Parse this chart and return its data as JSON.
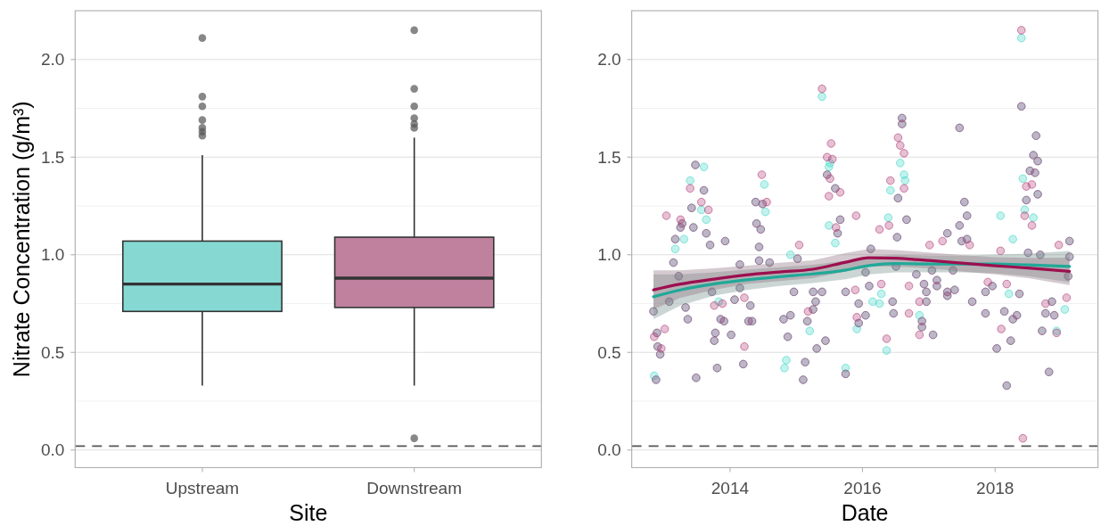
{
  "chart_data": [
    {
      "type": "box",
      "categories": [
        "Upstream",
        "Downstream"
      ],
      "colors": [
        "#86d9d3",
        "#c0819f"
      ],
      "boxes": [
        {
          "low": 0.33,
          "q1": 0.71,
          "median": 0.85,
          "q3": 1.07,
          "high": 1.51,
          "outliers": [
            2.11,
            1.81,
            1.76,
            1.69,
            1.65,
            1.63,
            1.61
          ]
        },
        {
          "low": 0.33,
          "q1": 0.73,
          "median": 0.88,
          "q3": 1.09,
          "high": 1.6,
          "outliers": [
            2.15,
            1.85,
            1.76,
            1.7,
            1.67,
            1.65,
            0.06
          ]
        }
      ],
      "xlabel": "Site",
      "ylabel": "Nitrate Concentration (g/m³)",
      "ylim": [
        -0.09,
        2.25
      ],
      "yticks": [
        {
          "value": 0,
          "label": "0.0"
        },
        {
          "value": 0.25,
          "label": null
        },
        {
          "value": 0.5,
          "label": "0.5"
        },
        {
          "value": 0.75,
          "label": null
        },
        {
          "value": 1,
          "label": "1.0"
        },
        {
          "value": 1.25,
          "label": null
        },
        {
          "value": 1.5,
          "label": "1.5"
        },
        {
          "value": 1.75,
          "label": null
        },
        {
          "value": 2,
          "label": "2.0"
        }
      ],
      "grid": "y",
      "ref_lines": [
        {
          "axis": "y",
          "value": 0.02,
          "color": "#555555",
          "line_style": "dashed"
        }
      ]
    },
    {
      "type": "scatter",
      "xlabel": "Date",
      "xlim": [
        "2012-07-08",
        "2019-07-22"
      ],
      "xticks": [
        "2014",
        "2016",
        "2018"
      ],
      "ylim": [
        -0.09,
        2.25
      ],
      "yticks": [
        {
          "value": 0,
          "label": "0.0"
        },
        {
          "value": 0.25,
          "label": null
        },
        {
          "value": 0.5,
          "label": "0.5"
        },
        {
          "value": 0.75,
          "label": null
        },
        {
          "value": 1,
          "label": "1.0"
        },
        {
          "value": 1.25,
          "label": null
        },
        {
          "value": 1.5,
          "label": "1.5"
        },
        {
          "value": 1.75,
          "label": null
        },
        {
          "value": 2,
          "label": "2.0"
        }
      ],
      "grid": "y",
      "ref_lines": [
        {
          "axis": "y",
          "value": 0.02,
          "color": "#555555",
          "line_style": "dashed"
        }
      ],
      "series": [
        {
          "type": "scatter",
          "color": "#3fd6c6",
          "x": [
            "2012-11-05",
            "2012-11-09",
            "2012-11-19",
            "2012-11-24",
            "2012-11-28",
            "2012-12-12",
            "2013-01-31",
            "2013-02-23",
            "2013-03-05",
            "2013-03-05",
            "2013-03-24",
            "2013-04-03",
            "2013-04-12",
            "2013-04-22",
            "2013-05-01",
            "2013-05-13",
            "2013-05-26",
            "2013-06-03",
            "2013-06-13",
            "2013-06-24",
            "2013-06-28",
            "2013-07-27",
            "2013-08-10",
            "2013-08-10",
            "2013-08-23",
            "2013-08-23",
            "2013-09-13",
            "2013-09-23",
            "2013-10-06",
            "2013-10-12",
            "2013-10-22",
            "2013-10-31",
            "2013-11-10",
            "2013-11-29",
            "2013-12-05",
            "2014-01-07",
            "2014-01-26",
            "2014-02-24",
            "2014-02-24",
            "2014-03-15",
            "2014-04-13",
            "2014-04-23",
            "2014-05-02",
            "2014-05-22",
            "2014-05-27",
            "2014-06-10",
            "2014-06-10",
            "2014-06-19",
            "2014-06-29",
            "2014-07-09",
            "2014-07-15",
            "2014-08-07",
            "2014-10-23",
            "2014-10-28",
            "2014-11-07",
            "2014-11-15",
            "2014-11-30",
            "2014-11-30",
            "2014-12-19",
            "2015-01-08",
            "2015-02-08",
            "2015-02-19",
            "2015-03-03",
            "2015-03-16",
            "2015-04-04",
            "2015-04-04",
            "2015-04-18",
            "2015-04-24",
            "2015-05-23",
            "2015-05-23",
            "2015-06-11",
            "2015-06-20",
            "2015-06-30",
            "2015-06-30",
            "2015-07-06",
            "2015-08-04",
            "2015-08-04",
            "2015-08-17",
            "2015-08-31",
            "2015-09-30",
            "2015-09-30",
            "2015-09-30",
            "2015-12-01",
            "2015-12-11",
            "2015-12-11",
            "2016-01-18",
            "2016-01-18",
            "2016-02-07",
            "2016-02-16",
            "2016-02-26",
            "2016-04-04",
            "2016-04-14",
            "2016-05-13",
            "2016-05-22",
            "2016-06-03",
            "2016-06-15",
            "2016-06-20",
            "2016-07-04",
            "2016-07-10",
            "2016-07-15",
            "2016-07-27",
            "2016-08-06",
            "2016-08-06",
            "2016-08-17",
            "2016-08-23",
            "2016-08-31",
            "2016-10-24",
            "2016-11-10",
            "2016-11-24",
            "2016-11-24",
            "2016-12-05",
            "2016-12-18",
            "2016-12-18",
            "2017-01-18",
            "2017-01-24",
            "2017-02-14",
            "2017-02-14",
            "2017-04-13",
            "2017-04-13",
            "2017-04-13",
            "2017-05-14",
            "2017-05-23",
            "2017-06-19",
            "2017-06-19",
            "2017-07-01",
            "2017-07-16",
            "2017-07-30",
            "2017-07-30",
            "2017-08-28",
            "2017-11-09",
            "2017-11-09",
            "2017-12-17",
            "2018-01-10",
            "2018-01-31",
            "2018-02-21",
            "2018-03-06",
            "2018-03-18",
            "2018-03-28",
            "2018-04-09",
            "2018-04-09",
            "2018-05-01",
            "2018-05-15",
            "2018-05-26",
            "2018-05-26",
            "2018-06-03",
            "2018-06-13",
            "2018-06-22",
            "2018-07-02",
            "2018-07-12",
            "2018-07-31",
            "2018-07-31",
            "2018-08-09",
            "2018-08-15",
            "2018-08-24",
            "2018-08-24",
            "2018-09-07",
            "2018-09-17",
            "2018-10-06",
            "2018-10-25",
            "2018-11-10",
            "2018-11-23",
            "2018-12-06",
            "2019-01-20",
            "2019-02-08",
            "2019-02-15",
            "2019-02-15"
          ],
          "values": [
            0.71,
            0.38,
            0.36,
            0.6,
            0.53,
            0.49,
            0.76,
            0.96,
            1.03,
            1.08,
            0.89,
            1.14,
            1.16,
            1.08,
            0.73,
            0.67,
            1.38,
            1.24,
            1.14,
            1.46,
            0.37,
            1.23,
            1.45,
            1.33,
            1.11,
            1.18,
            1.05,
            0.81,
            0.56,
            0.6,
            0.42,
            0.76,
            0.67,
            0.66,
            1.07,
            0.59,
            0.77,
            0.95,
            0.83,
            0.44,
            0.66,
            0.74,
            0.66,
            1.27,
            1.16,
            1.04,
            0.97,
            1.13,
            1.26,
            1.36,
            1.22,
            0.96,
            0.67,
            0.42,
            0.46,
            0.58,
            0.69,
            1.0,
            0.81,
            0.98,
            0.36,
            0.45,
            0.66,
            0.61,
            0.72,
            0.81,
            0.76,
            0.52,
            1.81,
            0.81,
            0.56,
            1.41,
            1.45,
            1.15,
            1.47,
            1.34,
            1.06,
            1.11,
            1.18,
            0.39,
            0.42,
            0.81,
            0.62,
            0.75,
            0.65,
            0.69,
            0.91,
            0.84,
            1.03,
            0.76,
            0.75,
            0.8,
            0.51,
            1.19,
            1.33,
            0.76,
            0.7,
            0.94,
            1.09,
            1.29,
            1.47,
            1.7,
            1.67,
            1.41,
            1.38,
            1.18,
            0.9,
            0.69,
            0.63,
            0.66,
            0.85,
            0.76,
            0.81,
            0.92,
            0.59,
            0.84,
            0.87,
            1.11,
            0.81,
            0.79,
            0.92,
            0.82,
            1.65,
            1.15,
            1.07,
            1.27,
            1.2,
            1.08,
            0.76,
            0.7,
            0.81,
            0.84,
            0.52,
            1.2,
            0.71,
            0.33,
            0.8,
            0.56,
            0.67,
            1.08,
            0.69,
            0.8,
            2.11,
            1.76,
            1.39,
            1.23,
            1.28,
            1.01,
            1.43,
            1.51,
            1.19,
            1.42,
            1.61,
            1.48,
            1.31,
            1.0,
            0.61,
            0.7,
            0.4,
            0.76,
            0.69,
            0.61,
            0.72,
            0.89,
            1.07,
            0.99
          ]
        },
        {
          "type": "scatter",
          "color": "#b03a75",
          "x": [
            "2012-11-05",
            "2012-11-09",
            "2012-11-19",
            "2012-11-24",
            "2012-11-28",
            "2012-12-12",
            "2012-12-18",
            "2013-01-06",
            "2013-01-15",
            "2013-01-31",
            "2013-02-23",
            "2013-03-05",
            "2013-03-24",
            "2013-04-03",
            "2013-04-03",
            "2013-04-12",
            "2013-05-01",
            "2013-05-13",
            "2013-05-26",
            "2013-06-03",
            "2013-06-13",
            "2013-06-24",
            "2013-06-28",
            "2013-07-27",
            "2013-08-10",
            "2013-08-23",
            "2013-09-04",
            "2013-09-13",
            "2013-09-23",
            "2013-10-06",
            "2013-10-06",
            "2013-10-12",
            "2013-10-22",
            "2013-11-10",
            "2013-11-20",
            "2013-11-29",
            "2013-12-05",
            "2014-01-07",
            "2014-01-26",
            "2014-02-24",
            "2014-02-24",
            "2014-03-15",
            "2014-03-21",
            "2014-03-21",
            "2014-04-13",
            "2014-04-23",
            "2014-05-02",
            "2014-05-22",
            "2014-05-27",
            "2014-06-10",
            "2014-06-10",
            "2014-06-19",
            "2014-06-25",
            "2014-06-29",
            "2014-07-22",
            "2014-08-07",
            "2014-10-23",
            "2014-11-15",
            "2014-11-30",
            "2014-12-19",
            "2015-01-08",
            "2015-01-17",
            "2015-02-08",
            "2015-02-19",
            "2015-03-03",
            "2015-03-07",
            "2015-04-04",
            "2015-04-04",
            "2015-04-18",
            "2015-04-24",
            "2015-05-23",
            "2015-05-23",
            "2015-06-11",
            "2015-06-20",
            "2015-06-20",
            "2015-06-30",
            "2015-07-06",
            "2015-07-12",
            "2015-07-19",
            "2015-08-04",
            "2015-08-08",
            "2015-08-17",
            "2015-08-31",
            "2015-08-31",
            "2015-09-30",
            "2015-09-30",
            "2015-11-22",
            "2015-11-27",
            "2015-12-01",
            "2015-12-11",
            "2015-12-11",
            "2016-01-18",
            "2016-01-18",
            "2016-02-07",
            "2016-02-16",
            "2016-04-04",
            "2016-04-14",
            "2016-05-13",
            "2016-05-26",
            "2016-06-03",
            "2016-06-15",
            "2016-06-20",
            "2016-07-04",
            "2016-07-10",
            "2016-07-15",
            "2016-07-15",
            "2016-07-27",
            "2016-08-06",
            "2016-08-06",
            "2016-08-17",
            "2016-08-17",
            "2016-08-31",
            "2016-09-13",
            "2016-09-13",
            "2016-10-24",
            "2016-11-10",
            "2016-11-10",
            "2016-11-24",
            "2016-11-24",
            "2016-12-05",
            "2016-12-18",
            "2016-12-18",
            "2017-01-05",
            "2017-01-18",
            "2017-01-24",
            "2017-02-14",
            "2017-02-14",
            "2017-03-17",
            "2017-04-13",
            "2017-04-13",
            "2017-04-13",
            "2017-05-14",
            "2017-05-23",
            "2017-06-19",
            "2017-06-19",
            "2017-07-01",
            "2017-07-16",
            "2017-07-30",
            "2017-07-30",
            "2017-08-14",
            "2017-08-28",
            "2017-11-09",
            "2017-11-09",
            "2017-11-22",
            "2017-12-17",
            "2018-01-10",
            "2018-01-31",
            "2018-02-04",
            "2018-02-21",
            "2018-03-06",
            "2018-03-06",
            "2018-03-28",
            "2018-04-09",
            "2018-05-01",
            "2018-05-15",
            "2018-05-26",
            "2018-05-26",
            "2018-06-03",
            "2018-06-13",
            "2018-06-22",
            "2018-06-22",
            "2018-07-02",
            "2018-07-12",
            "2018-07-23",
            "2018-07-23",
            "2018-07-31",
            "2018-08-09",
            "2018-08-15",
            "2018-08-24",
            "2018-08-24",
            "2018-09-07",
            "2018-09-17",
            "2018-10-06",
            "2018-10-06",
            "2018-10-25",
            "2018-11-10",
            "2018-11-23",
            "2018-12-06",
            "2018-12-18",
            "2019-01-30",
            "2019-02-08",
            "2019-02-15",
            "2019-02-15"
          ],
          "values": [
            0.71,
            0.58,
            0.36,
            0.6,
            0.53,
            0.49,
            0.52,
            0.62,
            1.2,
            0.76,
            0.96,
            1.08,
            0.89,
            1.18,
            1.14,
            1.16,
            0.73,
            0.67,
            1.34,
            1.24,
            1.14,
            1.46,
            0.37,
            1.27,
            1.33,
            1.11,
            1.23,
            1.05,
            0.81,
            0.74,
            0.56,
            0.6,
            0.42,
            0.67,
            0.75,
            0.66,
            1.07,
            0.59,
            0.77,
            0.95,
            0.83,
            0.44,
            0.78,
            0.53,
            0.66,
            0.74,
            0.66,
            1.27,
            1.16,
            1.04,
            0.97,
            1.13,
            1.41,
            1.26,
            1.27,
            0.96,
            0.67,
            0.58,
            0.69,
            0.81,
            0.98,
            1.05,
            0.36,
            0.45,
            0.66,
            0.71,
            0.72,
            0.81,
            0.76,
            0.52,
            1.85,
            0.81,
            0.56,
            1.5,
            1.41,
            1.3,
            1.39,
            1.57,
            1.49,
            1.34,
            1.14,
            1.11,
            1.32,
            1.18,
            0.39,
            0.81,
            0.82,
            1.2,
            0.68,
            0.75,
            0.65,
            0.69,
            0.91,
            0.84,
            1.03,
            1.13,
            0.85,
            0.57,
            1.15,
            1.38,
            0.76,
            0.7,
            0.94,
            1.09,
            1.29,
            1.6,
            1.56,
            1.7,
            1.67,
            1.52,
            1.34,
            1.18,
            0.7,
            0.84,
            0.9,
            0.76,
            0.59,
            0.63,
            0.66,
            0.85,
            0.76,
            0.81,
            1.05,
            0.92,
            0.59,
            0.84,
            0.87,
            1.07,
            1.11,
            0.81,
            0.79,
            0.92,
            0.82,
            1.65,
            1.15,
            1.07,
            1.27,
            1.2,
            1.08,
            1.05,
            0.76,
            0.7,
            0.81,
            0.86,
            0.84,
            0.52,
            1.02,
            0.62,
            0.71,
            0.33,
            0.85,
            0.56,
            0.67,
            0.69,
            0.8,
            2.15,
            1.76,
            0.06,
            1.2,
            1.35,
            1.28,
            1.01,
            1.43,
            1.36,
            1.15,
            1.51,
            1.42,
            1.61,
            1.48,
            1.31,
            1.0,
            0.61,
            0.75,
            0.7,
            0.4,
            0.76,
            0.69,
            0.6,
            1.05,
            0.78,
            0.89,
            1.07,
            0.99
          ]
        },
        {
          "type": "line",
          "color": "#20a898",
          "x": [
            "2012-11-05",
            "2013-04-02",
            "2013-10-01",
            "2014-04-02",
            "2014-10-01",
            "2015-04-02",
            "2015-10-01",
            "2016-02-06",
            "2016-07-01",
            "2017-01-01",
            "2017-07-02",
            "2018-01-01",
            "2018-07-02",
            "2019-02-15"
          ],
          "values": [
            0.785,
            0.82,
            0.85,
            0.872,
            0.888,
            0.902,
            0.922,
            0.945,
            0.955,
            0.953,
            0.953,
            0.953,
            0.948,
            0.94
          ],
          "lower": [
            0.67,
            0.74,
            0.79,
            0.82,
            0.84,
            0.855,
            0.875,
            0.9,
            0.91,
            0.91,
            0.91,
            0.905,
            0.89,
            0.86
          ],
          "upper": [
            0.9,
            0.9,
            0.91,
            0.924,
            0.936,
            0.949,
            0.969,
            0.99,
            1.0,
            0.996,
            0.996,
            1.001,
            1.006,
            1.02
          ]
        },
        {
          "type": "line",
          "color": "#9c0f4f",
          "x": [
            "2012-11-05",
            "2013-04-02",
            "2013-10-01",
            "2014-04-02",
            "2014-10-01",
            "2015-04-02",
            "2015-10-01",
            "2016-02-06",
            "2016-07-01",
            "2017-01-01",
            "2017-07-02",
            "2018-01-01",
            "2018-07-02",
            "2019-02-15"
          ],
          "values": [
            0.82,
            0.85,
            0.875,
            0.897,
            0.912,
            0.926,
            0.962,
            0.985,
            0.982,
            0.971,
            0.957,
            0.944,
            0.932,
            0.915
          ],
          "lower": [
            0.72,
            0.78,
            0.82,
            0.85,
            0.865,
            0.88,
            0.915,
            0.94,
            0.94,
            0.93,
            0.915,
            0.9,
            0.88,
            0.845
          ],
          "upper": [
            0.92,
            0.92,
            0.93,
            0.944,
            0.959,
            0.972,
            1.009,
            1.03,
            1.024,
            1.012,
            0.999,
            0.988,
            0.984,
            0.985
          ]
        }
      ]
    }
  ]
}
